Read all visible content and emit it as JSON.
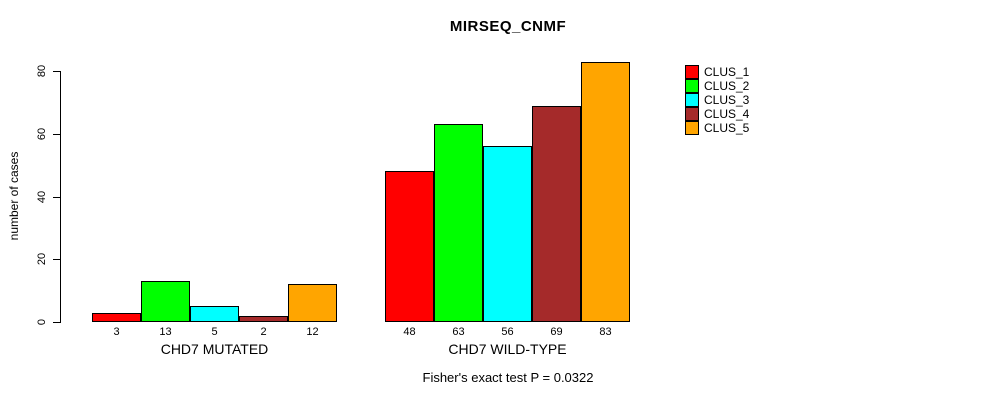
{
  "title": "MIRSEQ_CNMF",
  "footer": "Fisher's exact test P = 0.0322",
  "chart_data": {
    "type": "bar",
    "title": "MIRSEQ_CNMF",
    "xlabel": "",
    "ylabel": "number of cases",
    "ylim": [
      0,
      80
    ],
    "yticks": [
      0,
      20,
      40,
      60,
      80
    ],
    "grid": false,
    "categories": [
      "CHD7 MUTATED",
      "CHD7 WILD-TYPE"
    ],
    "series": [
      {
        "name": "CLUS_1",
        "color": "#FF0000",
        "values": [
          3,
          48
        ]
      },
      {
        "name": "CLUS_2",
        "color": "#00FF00",
        "values": [
          13,
          63
        ]
      },
      {
        "name": "CLUS_3",
        "color": "#00FFFF",
        "values": [
          5,
          56
        ]
      },
      {
        "name": "CLUS_4",
        "color": "#A52A2A",
        "values": [
          2,
          69
        ]
      },
      {
        "name": "CLUS_5",
        "color": "#FFA500",
        "values": [
          12,
          83
        ]
      }
    ],
    "bar_value_labels": [
      [
        3,
        13,
        5,
        2,
        12
      ],
      [
        48,
        63,
        56,
        69,
        83
      ]
    ],
    "legend_position": "right",
    "legend_entries": [
      "CLUS_1",
      "CLUS_2",
      "CLUS_3",
      "CLUS_4",
      "CLUS_5"
    ],
    "annotation": "Fisher's exact test P = 0.0322"
  }
}
